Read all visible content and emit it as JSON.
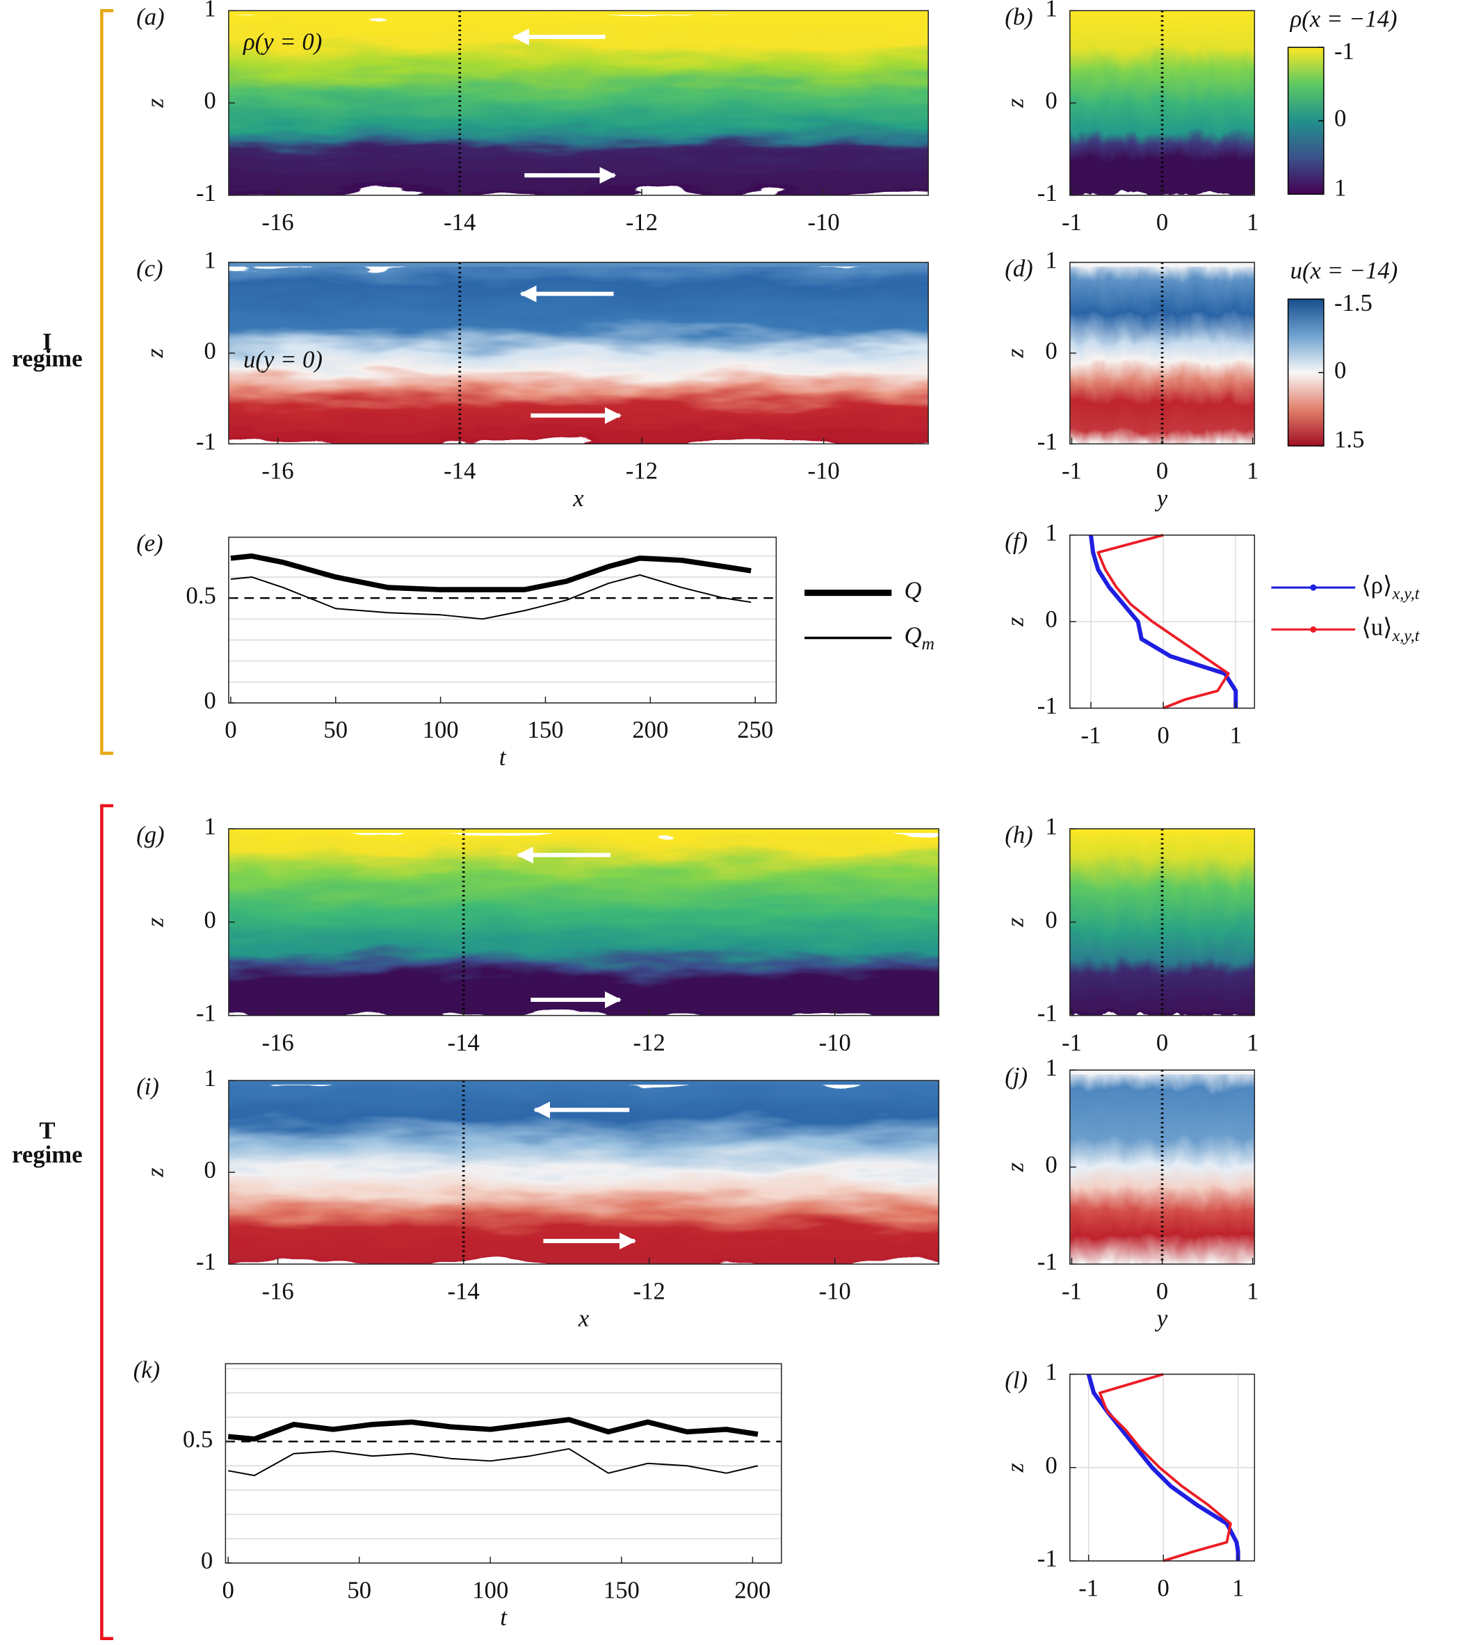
{
  "chart_data": [
    {
      "type": "heatmap",
      "label": "(a)",
      "annotation": "ρ(y = 0)",
      "colormap": "viridis",
      "xlim": [
        -16.54,
        -8.85
      ],
      "ylim": [
        -1,
        1
      ],
      "xticks": [
        -16,
        -14,
        -12,
        -10
      ],
      "yticks": [
        1,
        0,
        -1
      ],
      "ylabel": "z",
      "vline": -14
    },
    {
      "type": "heatmap",
      "label": "(b)",
      "colormap": "viridis",
      "xlim": [
        -1.02,
        1.02
      ],
      "ylim": [
        -1,
        1
      ],
      "xticks": [
        -1,
        0,
        1
      ],
      "yticks": [
        1,
        0,
        -1
      ],
      "ylabel": "z",
      "vline": 0
    },
    {
      "type": "colorbar",
      "title": "ρ(x = −14)",
      "colormap": "viridis",
      "ylim": [
        -1,
        1
      ],
      "yticks": [
        -1,
        0,
        1
      ]
    },
    {
      "type": "heatmap",
      "label": "(c)",
      "annotation": "u(y = 0)",
      "colormap": "RdBu",
      "xlim": [
        -16.54,
        -8.85
      ],
      "ylim": [
        -1,
        1
      ],
      "xticks": [
        -16,
        -14,
        -12,
        -10
      ],
      "yticks": [
        1,
        0,
        -1
      ],
      "ylabel": "z",
      "xlabel": "x",
      "vline": -14
    },
    {
      "type": "heatmap",
      "label": "(d)",
      "colormap": "RdBu",
      "xlim": [
        -1.02,
        1.02
      ],
      "ylim": [
        -1,
        1
      ],
      "xticks": [
        -1,
        0,
        1
      ],
      "yticks": [
        1,
        0,
        -1
      ],
      "ylabel": "z",
      "xlabel": "y",
      "vline": 0
    },
    {
      "type": "colorbar",
      "title": "u(x = −14)",
      "colormap": "RdBu",
      "ylim": [
        -1.5,
        1.5
      ],
      "yticks": [
        -1.5,
        0,
        1.5
      ]
    },
    {
      "type": "line",
      "label": "(e)",
      "xlabel": "t",
      "xlim": [
        -1,
        260
      ],
      "ylim": [
        0,
        0.79
      ],
      "xticks": [
        0,
        50,
        100,
        150,
        200,
        250
      ],
      "yticks": [
        0,
        0.5
      ],
      "minor_yticks": [
        0.1,
        0.2,
        0.3,
        0.4,
        0.6,
        0.7
      ],
      "hline": 0.5,
      "x": [
        0,
        10,
        25,
        50,
        75,
        100,
        120,
        140,
        160,
        180,
        195,
        215,
        235,
        248
      ],
      "series": [
        {
          "name": "Q",
          "color": "#000000",
          "width": 5,
          "values": [
            0.69,
            0.7,
            0.67,
            0.6,
            0.55,
            0.54,
            0.54,
            0.54,
            0.58,
            0.65,
            0.69,
            0.68,
            0.65,
            0.63
          ]
        },
        {
          "name": "Q",
          "subscript": "m",
          "color": "#000000",
          "width": 1.3,
          "values": [
            0.59,
            0.6,
            0.55,
            0.45,
            0.43,
            0.42,
            0.4,
            0.44,
            0.49,
            0.57,
            0.61,
            0.55,
            0.5,
            0.48
          ]
        }
      ]
    },
    {
      "type": "profile",
      "label": "(f)",
      "ylabel": "z",
      "xlim": [
        -1.29,
        1.26
      ],
      "ylim": [
        -1,
        1
      ],
      "xticks": [
        -1,
        0,
        1
      ],
      "yticks": [
        1,
        0,
        -1
      ],
      "grid": true,
      "legend": "outside-right",
      "z": [
        1,
        0.8,
        0.6,
        0.4,
        0.2,
        0,
        -0.2,
        -0.4,
        -0.6,
        -0.8,
        -0.9,
        -1
      ],
      "series": [
        {
          "name": "⟨ρ⟩",
          "subscript": "x,y,t",
          "color": "#1f1fe0",
          "width": 4,
          "values": [
            -1,
            -0.97,
            -0.9,
            -0.75,
            -0.55,
            -0.35,
            -0.3,
            0.1,
            0.85,
            1.0,
            1.0,
            1.0
          ]
        },
        {
          "name": "⟨u⟩",
          "subscript": "x,y,t",
          "color": "#ec1c24",
          "width": 2.5,
          "values": [
            0,
            -0.9,
            -0.8,
            -0.65,
            -0.45,
            -0.15,
            0.2,
            0.55,
            0.9,
            0.75,
            0.3,
            0
          ]
        }
      ]
    },
    {
      "type": "heatmap",
      "label": "(g)",
      "colormap": "viridis",
      "xlim": [
        -16.53,
        -8.88
      ],
      "ylim": [
        -1,
        1
      ],
      "xticks": [
        -16,
        -14,
        -12,
        -10
      ],
      "yticks": [
        1,
        0,
        -1
      ],
      "ylabel": "z",
      "vline": -14
    },
    {
      "type": "heatmap",
      "label": "(h)",
      "colormap": "viridis",
      "xlim": [
        -1.02,
        1.02
      ],
      "ylim": [
        -1,
        1
      ],
      "xticks": [
        -1,
        0,
        1
      ],
      "yticks": [
        1,
        0,
        -1
      ],
      "ylabel": "z",
      "vline": 0
    },
    {
      "type": "heatmap",
      "label": "(i)",
      "colormap": "RdBu",
      "xlim": [
        -16.53,
        -8.88
      ],
      "ylim": [
        -1,
        1
      ],
      "xticks": [
        -16,
        -14,
        -12,
        -10
      ],
      "yticks": [
        1,
        0,
        -1
      ],
      "ylabel": "z",
      "xlabel": "x",
      "vline": -14
    },
    {
      "type": "heatmap",
      "label": "(j)",
      "colormap": "RdBu",
      "xlim": [
        -1.02,
        1.02
      ],
      "ylim": [
        -1,
        1
      ],
      "xticks": [
        -1,
        0,
        1
      ],
      "yticks": [
        1,
        0,
        -1
      ],
      "ylabel": "z",
      "xlabel": "y",
      "vline": 0
    },
    {
      "type": "line",
      "label": "(k)",
      "xlabel": "t",
      "xlim": [
        -1,
        211
      ],
      "ylim": [
        0,
        0.82
      ],
      "xticks": [
        0,
        50,
        100,
        150,
        200
      ],
      "yticks": [
        0,
        0.5
      ],
      "minor_yticks": [
        0.1,
        0.2,
        0.3,
        0.4,
        0.6,
        0.7,
        0.8
      ],
      "hline": 0.5,
      "x": [
        0,
        10,
        25,
        40,
        55,
        70,
        85,
        100,
        115,
        130,
        145,
        160,
        175,
        190,
        202
      ],
      "series": [
        {
          "name": "Q",
          "color": "#000000",
          "width": 5,
          "values": [
            0.52,
            0.51,
            0.57,
            0.55,
            0.57,
            0.58,
            0.56,
            0.55,
            0.57,
            0.59,
            0.54,
            0.58,
            0.54,
            0.55,
            0.53
          ]
        },
        {
          "name": "Q",
          "subscript": "m",
          "color": "#000000",
          "width": 1.3,
          "values": [
            0.38,
            0.36,
            0.45,
            0.46,
            0.44,
            0.45,
            0.43,
            0.42,
            0.44,
            0.47,
            0.37,
            0.41,
            0.4,
            0.37,
            0.4
          ]
        }
      ]
    },
    {
      "type": "profile",
      "label": "(l)",
      "ylabel": "z",
      "xlim": [
        -1.25,
        1.22
      ],
      "ylim": [
        -1,
        1
      ],
      "xticks": [
        -1,
        0,
        1
      ],
      "yticks": [
        1,
        0,
        -1
      ],
      "grid": true,
      "z": [
        1,
        0.8,
        0.6,
        0.4,
        0.2,
        0,
        -0.2,
        -0.4,
        -0.6,
        -0.8,
        -0.9,
        -1
      ],
      "series": [
        {
          "name": "⟨ρ⟩",
          "subscript": "x,y,t",
          "color": "#1f1fe0",
          "width": 4,
          "values": [
            -1,
            -0.93,
            -0.75,
            -0.55,
            -0.35,
            -0.15,
            0.1,
            0.45,
            0.85,
            0.98,
            1,
            1
          ]
        },
        {
          "name": "⟨u⟩",
          "subscript": "x,y,t",
          "color": "#ec1c24",
          "width": 2.5,
          "values": [
            0,
            -0.85,
            -0.75,
            -0.5,
            -0.3,
            -0.05,
            0.25,
            0.6,
            0.9,
            0.85,
            0.4,
            0
          ]
        }
      ]
    }
  ],
  "regimes": [
    {
      "lines": [
        "I",
        "regime"
      ],
      "color": "#e6a817"
    },
    {
      "lines": [
        "T",
        "regime"
      ],
      "color": "#e8141c"
    }
  ]
}
